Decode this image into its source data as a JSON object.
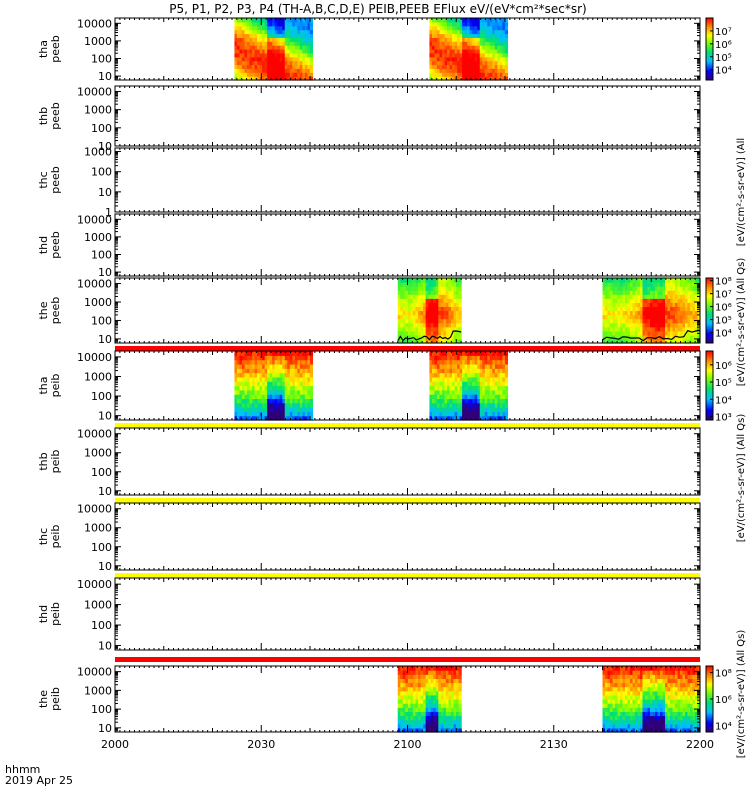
{
  "title": "P5, P1, P2, P3, P4 (TH-A,B,C,D,E) PEIB,PEEB EFlux eV/(eV*cm²*sec*sr)",
  "time_label": "hhmm",
  "date_label": "2019 Apr 25",
  "colorbar_labels": {
    "peeb_upper": "[eV/(cm²-s-sr-eV)] (All",
    "peeb_the": "[eV/(cm²-s-sr-eV)] (All Qs)",
    "peib_tha": "[eV/(cm²-s-sr-eV)] (All Qs)",
    "peib_the": "[eV/(cm²-s-sr-eV)] (All Qs)"
  },
  "colors": {
    "red_bar": "#ff0000",
    "yellow_bar": "#ffff00",
    "trace": "#000000"
  },
  "chart_data": {
    "type": "heatmap",
    "x_ticks": [
      "2000",
      "2030",
      "2100",
      "2130",
      "2200"
    ],
    "x_range_minutes": [
      0,
      120
    ],
    "y_scale": "log",
    "panels": [
      {
        "name": "tha_peeb",
        "ylabel": [
          "tha",
          "peeb"
        ],
        "y_ticks": [
          "10",
          "100",
          "1000",
          "10000"
        ],
        "ylim": [
          6,
          20000
        ],
        "colorbar_ticks": [
          "10⁴",
          "10⁵",
          "10⁶",
          "10⁷"
        ],
        "colorbar_range": [
          3.2,
          8
        ],
        "blocks": [
          {
            "start": 24.5,
            "end": 40.5
          },
          {
            "start": 64.5,
            "end": 80.5
          }
        ],
        "status_bar": null
      },
      {
        "name": "thb_peeb",
        "ylabel": [
          "thb",
          "peeb"
        ],
        "y_ticks": [
          "10",
          "100",
          "1000",
          "10000"
        ],
        "ylim": [
          10,
          20000
        ],
        "colorbar_ticks": [],
        "blocks": [],
        "status_bar": null
      },
      {
        "name": "thc_peeb",
        "ylabel": [
          "thc",
          "peeb"
        ],
        "y_ticks": [
          "1",
          "10",
          "100",
          "1000"
        ],
        "ylim": [
          1,
          1500
        ],
        "colorbar_ticks": [],
        "blocks": [],
        "status_bar": null
      },
      {
        "name": "thd_peeb",
        "ylabel": [
          "thd",
          "peeb"
        ],
        "y_ticks": [
          "10",
          "100",
          "1000",
          "10000"
        ],
        "ylim": [
          6,
          20000
        ],
        "colorbar_ticks": [],
        "blocks": [],
        "status_bar": null
      },
      {
        "name": "the_peeb",
        "ylabel": [
          "the",
          "peeb"
        ],
        "y_ticks": [
          "10",
          "100",
          "1000",
          "10000"
        ],
        "ylim": [
          6,
          20000
        ],
        "colorbar_ticks": [
          "10⁴",
          "10⁵",
          "10⁶",
          "10⁷",
          "10⁸"
        ],
        "colorbar_range": [
          3.2,
          8.2
        ],
        "blocks": [
          {
            "start": 58,
            "end": 71
          },
          {
            "start": 100,
            "end": 120
          }
        ],
        "status_bar": "red_bar"
      },
      {
        "name": "tha_peib",
        "ylabel": [
          "tha",
          "peib"
        ],
        "y_ticks": [
          "10",
          "100",
          "1000",
          "10000"
        ],
        "ylim": [
          6,
          20000
        ],
        "colorbar_ticks": [
          "10³",
          "10⁴",
          "10⁵",
          "10⁶"
        ],
        "colorbar_range": [
          2.8,
          6.8
        ],
        "blocks": [
          {
            "start": 24.5,
            "end": 40.5
          },
          {
            "start": 64.5,
            "end": 80.5
          }
        ],
        "status_bar": "yellow_bar"
      },
      {
        "name": "thb_peib",
        "ylabel": [
          "thb",
          "peib"
        ],
        "y_ticks": [
          "10",
          "100",
          "1000",
          "10000"
        ],
        "ylim": [
          6,
          20000
        ],
        "colorbar_ticks": [],
        "blocks": [],
        "status_bar": "yellow_bar"
      },
      {
        "name": "thc_peib",
        "ylabel": [
          "thc",
          "peib"
        ],
        "y_ticks": [
          "10",
          "100",
          "1000",
          "10000"
        ],
        "ylim": [
          6,
          20000
        ],
        "colorbar_ticks": [],
        "blocks": [],
        "status_bar": "yellow_bar"
      },
      {
        "name": "thd_peib",
        "ylabel": [
          "thd",
          "peib"
        ],
        "y_ticks": [
          "10",
          "100",
          "1000",
          "10000"
        ],
        "ylim": [
          6,
          20000
        ],
        "colorbar_ticks": [],
        "blocks": [],
        "status_bar": "red_bar"
      },
      {
        "name": "the_peib",
        "ylabel": [
          "the",
          "peib"
        ],
        "y_ticks": [
          "10",
          "100",
          "1000",
          "10000"
        ],
        "ylim": [
          6,
          20000
        ],
        "colorbar_ticks": [
          "10⁴",
          "10⁶",
          "10⁸"
        ],
        "colorbar_range": [
          3.5,
          8.5
        ],
        "blocks": [
          {
            "start": 58,
            "end": 71
          },
          {
            "start": 100,
            "end": 120
          }
        ],
        "status_bar": null
      }
    ]
  }
}
